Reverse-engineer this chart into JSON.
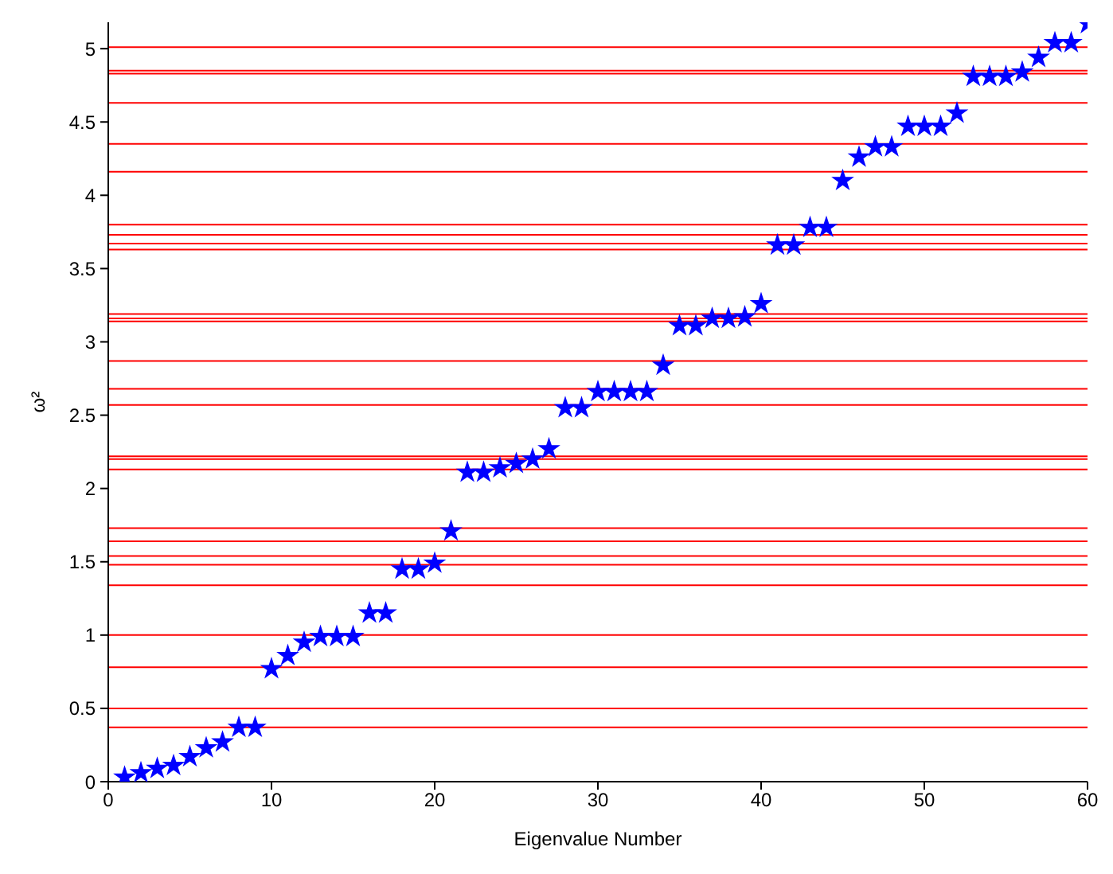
{
  "chart_data": {
    "type": "scatter",
    "xlabel": "Eigenvalue Number",
    "ylabel": "ω²",
    "x": [
      1,
      2,
      3,
      4,
      5,
      6,
      7,
      8,
      9,
      10,
      11,
      12,
      13,
      14,
      15,
      16,
      17,
      18,
      19,
      20,
      21,
      22,
      23,
      24,
      25,
      26,
      27,
      28,
      29,
      30,
      31,
      32,
      33,
      34,
      35,
      36,
      37,
      38,
      39,
      40,
      41,
      42,
      43,
      44,
      45,
      46,
      47,
      48,
      49,
      50,
      51,
      52,
      53,
      54,
      55,
      56,
      57,
      58,
      59,
      60
    ],
    "series": [
      {
        "color": "#0000ff",
        "values": [
          0.03,
          0.06,
          0.09,
          0.11,
          0.17,
          0.23,
          0.27,
          0.37,
          0.37,
          0.77,
          0.86,
          0.95,
          0.99,
          0.99,
          0.99,
          1.15,
          1.15,
          1.45,
          1.45,
          1.49,
          1.71,
          2.11,
          2.11,
          2.14,
          2.17,
          2.2,
          2.27,
          2.55,
          2.55,
          2.66,
          2.66,
          2.66,
          2.66,
          2.84,
          3.11,
          3.11,
          3.16,
          3.16,
          3.17,
          3.26,
          3.66,
          3.66,
          3.78,
          3.78,
          4.1,
          4.26,
          4.33,
          4.33,
          4.47,
          4.47,
          4.47,
          4.56,
          4.81,
          4.81,
          4.81,
          4.84,
          4.94,
          5.04,
          5.04,
          5.17
        ]
      }
    ],
    "marker": "star",
    "xlim": [
      0,
      60
    ],
    "xticks": [
      0,
      10,
      20,
      30,
      40,
      50,
      60
    ],
    "ylim": [
      0,
      5.18
    ],
    "yticks": [
      0,
      0.5,
      1,
      1.5,
      2,
      2.5,
      3,
      3.5,
      4,
      4.5,
      5
    ],
    "grid": false,
    "legend": false,
    "ref_lines": [
      {
        "axis": "y",
        "value": 5.01,
        "color": "#ff0000"
      },
      {
        "axis": "y",
        "value": 4.85,
        "color": "#ff0000"
      },
      {
        "axis": "y",
        "value": 4.83,
        "color": "#ff0000"
      },
      {
        "axis": "y",
        "value": 4.63,
        "color": "#ff0000"
      },
      {
        "axis": "y",
        "value": 4.35,
        "color": "#ff0000"
      },
      {
        "axis": "y",
        "value": 4.16,
        "color": "#ff0000"
      },
      {
        "axis": "y",
        "value": 3.8,
        "color": "#ff0000"
      },
      {
        "axis": "y",
        "value": 3.73,
        "color": "#ff0000"
      },
      {
        "axis": "y",
        "value": 3.67,
        "color": "#ff0000"
      },
      {
        "axis": "y",
        "value": 3.63,
        "color": "#ff0000"
      },
      {
        "axis": "y",
        "value": 3.19,
        "color": "#ff0000"
      },
      {
        "axis": "y",
        "value": 3.16,
        "color": "#ff0000"
      },
      {
        "axis": "y",
        "value": 3.14,
        "color": "#ff0000"
      },
      {
        "axis": "y",
        "value": 2.87,
        "color": "#ff0000"
      },
      {
        "axis": "y",
        "value": 2.68,
        "color": "#ff0000"
      },
      {
        "axis": "y",
        "value": 2.57,
        "color": "#ff0000"
      },
      {
        "axis": "y",
        "value": 2.22,
        "color": "#ff0000"
      },
      {
        "axis": "y",
        "value": 2.2,
        "color": "#ff0000"
      },
      {
        "axis": "y",
        "value": 2.13,
        "color": "#ff0000"
      },
      {
        "axis": "y",
        "value": 1.73,
        "color": "#ff0000"
      },
      {
        "axis": "y",
        "value": 1.64,
        "color": "#ff0000"
      },
      {
        "axis": "y",
        "value": 1.54,
        "color": "#ff0000"
      },
      {
        "axis": "y",
        "value": 1.48,
        "color": "#ff0000"
      },
      {
        "axis": "y",
        "value": 1.34,
        "color": "#ff0000"
      },
      {
        "axis": "y",
        "value": 1.0,
        "color": "#ff0000"
      },
      {
        "axis": "y",
        "value": 0.78,
        "color": "#ff0000"
      },
      {
        "axis": "y",
        "value": 0.5,
        "color": "#ff0000"
      },
      {
        "axis": "y",
        "value": 0.37,
        "color": "#ff0000"
      }
    ]
  }
}
